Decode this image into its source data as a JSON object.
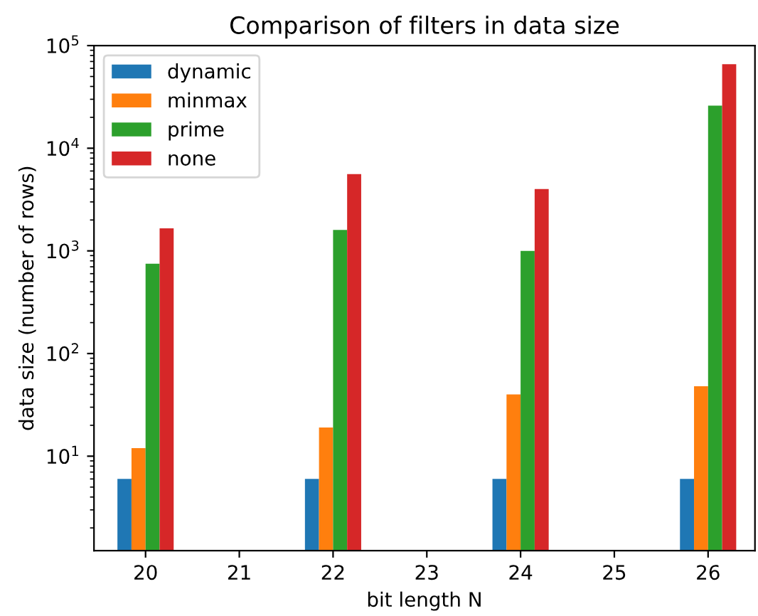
{
  "chart_data": {
    "type": "bar",
    "title": "Comparison of filters in data size",
    "xlabel": "bit length N",
    "ylabel": "data size (number of rows)",
    "x": [
      20,
      22,
      24,
      26
    ],
    "series": [
      {
        "name": "dynamic",
        "color": "#1f77b4",
        "values": [
          6,
          6,
          6,
          6
        ]
      },
      {
        "name": "minmax",
        "color": "#ff7f0e",
        "values": [
          12,
          19,
          40,
          48
        ]
      },
      {
        "name": "prime",
        "color": "#2ca02c",
        "values": [
          750,
          1600,
          1000,
          26000
        ]
      },
      {
        "name": "none",
        "color": "#d62728",
        "values": [
          1660,
          5600,
          4000,
          66000
        ]
      }
    ],
    "log": "y",
    "xlim": [
      19.45,
      26.5
    ],
    "xticks": [
      20,
      21,
      22,
      23,
      24,
      25,
      26
    ],
    "ylim": [
      1.2,
      100000
    ],
    "yticks": [
      {
        "value": 10,
        "label": "10$^{1}$"
      },
      {
        "value": 100,
        "label": "10$^{2}$"
      },
      {
        "value": 1000,
        "label": "10$^{3}$"
      },
      {
        "value": 10000,
        "label": "10$^{4}$"
      },
      {
        "value": 100000,
        "label": "10$^{5}$"
      }
    ],
    "legend": "top left",
    "grid": false
  }
}
